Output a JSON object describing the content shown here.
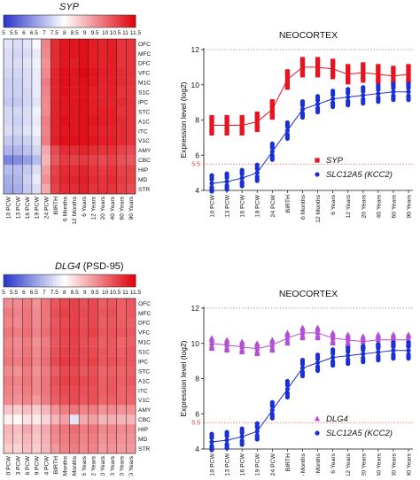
{
  "row_labels": [
    "OFC",
    "MFC",
    "DFC",
    "VFC",
    "M1C",
    "S1C",
    "IPC",
    "STC",
    "A1C",
    "ITC",
    "V1C",
    "AMY",
    "CBC",
    "HIP",
    "MD",
    "STR"
  ],
  "time_labels": [
    "10 PCW",
    "13 PCW",
    "16 PCW",
    "19 PCW",
    "24 PCW",
    "BIRTH",
    "6 Months",
    "12 Months",
    "6 Years",
    "12 Years",
    "20 Years",
    "40 Years",
    "60 Years",
    "90 Years"
  ],
  "scale_ticks": [
    "5",
    "5.5",
    "6",
    "6.5",
    "7",
    "7.5",
    "8",
    "8.5",
    "9",
    "9.5",
    "10",
    "10.5",
    "11",
    "11.5"
  ],
  "colors": {
    "low": "#2535c8",
    "mid": "#ffffff",
    "high": "#e0000a",
    "red_series": "#e8131e",
    "blue_series": "#1a2fd6",
    "purple_series": "#b24fd2"
  },
  "chart_data": [
    {
      "type": "heatmap",
      "title": "SYP",
      "title_italic": true,
      "title_suffix": "",
      "color_scale": [
        5,
        11.5
      ],
      "rows": [
        "OFC",
        "MFC",
        "DFC",
        "VFC",
        "M1C",
        "S1C",
        "IPC",
        "STC",
        "A1C",
        "ITC",
        "V1C",
        "AMY",
        "CBC",
        "HIP",
        "MD",
        "STR"
      ],
      "columns": [
        "10 PCW",
        "13 PCW",
        "16 PCW",
        "19 PCW",
        "24 PCW",
        "BIRTH",
        "6 Months",
        "12 Months",
        "6 Years",
        "12 Years",
        "20 Years",
        "40 Years",
        "60 Years",
        "90 Years"
      ],
      "values": [
        [
          7.6,
          7.5,
          7.6,
          7.9,
          9.7,
          10.9,
          11.2,
          11.2,
          11.3,
          11.1,
          11.0,
          11.1,
          10.8,
          10.8
        ],
        [
          7.5,
          7.4,
          7.5,
          7.7,
          9.6,
          10.9,
          11.2,
          11.2,
          11.3,
          11.1,
          11.0,
          11.1,
          10.8,
          10.8
        ],
        [
          7.5,
          7.5,
          7.6,
          7.8,
          9.5,
          10.9,
          11.2,
          11.1,
          11.3,
          11.1,
          11.0,
          11.1,
          10.8,
          10.8
        ],
        [
          7.4,
          7.4,
          7.5,
          7.7,
          9.6,
          11.0,
          11.3,
          11.2,
          11.4,
          11.2,
          11.1,
          11.1,
          10.9,
          10.8
        ],
        [
          7.3,
          7.3,
          7.5,
          7.7,
          9.8,
          11.0,
          11.3,
          11.2,
          11.3,
          11.2,
          11.0,
          11.1,
          10.9,
          10.8
        ],
        [
          7.3,
          7.3,
          7.4,
          7.7,
          9.7,
          11.0,
          11.3,
          11.2,
          11.3,
          11.1,
          11.0,
          11.1,
          10.8,
          10.8
        ],
        [
          7.2,
          7.2,
          7.4,
          7.6,
          9.6,
          11.0,
          11.2,
          11.2,
          11.3,
          11.1,
          11.0,
          11.0,
          10.9,
          10.8
        ],
        [
          7.4,
          7.4,
          7.5,
          7.8,
          9.6,
          11.0,
          11.2,
          11.2,
          11.3,
          11.1,
          11.1,
          11.1,
          10.8,
          10.8
        ],
        [
          7.4,
          7.3,
          7.5,
          7.7,
          9.8,
          11.0,
          11.3,
          11.2,
          11.3,
          11.2,
          11.1,
          11.1,
          10.9,
          10.8
        ],
        [
          7.5,
          7.4,
          7.6,
          7.8,
          9.7,
          11.0,
          11.2,
          11.2,
          11.3,
          11.1,
          11.0,
          11.0,
          10.9,
          10.8
        ],
        [
          7.2,
          7.2,
          7.3,
          7.6,
          9.8,
          11.1,
          11.3,
          11.3,
          11.3,
          11.2,
          11.1,
          11.1,
          10.9,
          10.8
        ],
        [
          6.9,
          6.9,
          7.1,
          7.4,
          9.2,
          10.5,
          10.9,
          10.9,
          11.0,
          10.9,
          10.8,
          10.8,
          10.6,
          10.5
        ],
        [
          6.2,
          6.3,
          6.6,
          7.0,
          9.0,
          10.3,
          10.7,
          10.6,
          10.7,
          10.6,
          10.5,
          10.6,
          10.4,
          10.3
        ],
        [
          7.0,
          7.0,
          7.2,
          7.5,
          9.3,
          10.6,
          10.9,
          10.9,
          11.0,
          10.8,
          10.7,
          10.8,
          10.6,
          10.6
        ],
        [
          6.8,
          6.9,
          7.3,
          7.7,
          9.5,
          10.7,
          11.0,
          11.0,
          11.1,
          10.9,
          10.8,
          10.9,
          10.7,
          10.6
        ],
        [
          6.7,
          6.8,
          7.2,
          7.5,
          9.2,
          10.6,
          10.9,
          10.9,
          11.0,
          10.8,
          10.8,
          10.8,
          10.6,
          10.5
        ]
      ]
    },
    {
      "type": "scatter",
      "title": "NEOCORTEX",
      "ylabel": "Expression level (log2)",
      "ylim": [
        4,
        12
      ],
      "yticks": [
        4,
        6,
        8,
        10,
        12
      ],
      "reference_lines": [
        12,
        5.5
      ],
      "reference_label": "5.5",
      "categories": [
        "10 PCW",
        "13 PCW",
        "16 PCW",
        "19 PCW",
        "24 PCW",
        "BIRTH",
        "6 Months",
        "12 Months",
        "6 Years",
        "12 Years",
        "20 Years",
        "40 Years",
        "60 Years",
        "90 Years"
      ],
      "x_positions": [
        0,
        1,
        2,
        3,
        4,
        5,
        6,
        7,
        8,
        9,
        10,
        11,
        12,
        13
      ],
      "series": [
        {
          "name": "SYP",
          "name_italic": true,
          "marker": "square",
          "values": [
            7.7,
            7.7,
            7.7,
            7.9,
            8.6,
            10.3,
            11.0,
            11.0,
            10.9,
            10.6,
            10.7,
            10.6,
            10.5,
            10.6
          ],
          "spread": 0.45
        },
        {
          "name": "SLC12A5 (KCC2)",
          "name_italic": true,
          "marker": "circle",
          "values": [
            4.4,
            4.5,
            4.7,
            5.0,
            6.2,
            7.4,
            8.6,
            8.9,
            9.2,
            9.3,
            9.4,
            9.5,
            9.6,
            9.6
          ],
          "spread": 0.45
        }
      ]
    },
    {
      "type": "heatmap",
      "title": "DLG4",
      "title_italic": true,
      "title_suffix": "(PSD-95)",
      "color_scale": [
        5,
        11.5
      ],
      "rows": [
        "OFC",
        "MFC",
        "DFC",
        "VFC",
        "M1C",
        "S1C",
        "IPC",
        "STC",
        "A1C",
        "ITC",
        "V1C",
        "AMY",
        "CBC",
        "HIP",
        "MD",
        "STR"
      ],
      "columns": [
        "10 PCW",
        "13 PCW",
        "16 PCW",
        "19 PCW",
        "24 PCW",
        "BIRTH",
        "6 Months",
        "12 Months",
        "6 Years",
        "12 Years",
        "20 Years",
        "40 Years",
        "60 Years",
        "90 Years"
      ],
      "values": [
        [
          9.6,
          9.6,
          9.8,
          9.5,
          9.9,
          10.3,
          10.5,
          10.6,
          10.4,
          10.5,
          10.2,
          10.3,
          10.2,
          10.3
        ],
        [
          9.8,
          9.7,
          9.9,
          9.6,
          9.9,
          10.4,
          10.6,
          10.6,
          10.5,
          10.5,
          10.3,
          10.4,
          10.2,
          10.3
        ],
        [
          9.7,
          9.6,
          9.9,
          9.6,
          9.9,
          10.3,
          10.5,
          10.6,
          10.4,
          10.5,
          10.2,
          10.3,
          10.2,
          10.2
        ],
        [
          9.9,
          9.8,
          10.0,
          9.7,
          10.0,
          10.4,
          10.6,
          10.7,
          10.5,
          10.6,
          10.3,
          10.4,
          10.3,
          10.3
        ],
        [
          9.7,
          9.6,
          9.8,
          9.5,
          9.8,
          10.3,
          10.5,
          10.6,
          10.4,
          10.4,
          10.2,
          10.3,
          10.1,
          10.2
        ],
        [
          9.8,
          9.7,
          9.9,
          9.6,
          9.9,
          10.4,
          10.6,
          10.6,
          10.5,
          10.5,
          10.3,
          10.3,
          10.2,
          10.3
        ],
        [
          9.9,
          9.8,
          10.0,
          9.7,
          10.0,
          10.5,
          10.7,
          10.7,
          10.5,
          10.6,
          10.3,
          10.4,
          10.3,
          10.3
        ],
        [
          9.6,
          9.5,
          9.8,
          9.5,
          9.8,
          10.2,
          10.5,
          10.5,
          10.3,
          10.4,
          10.1,
          10.2,
          10.1,
          10.2
        ],
        [
          9.8,
          9.7,
          9.9,
          9.6,
          9.9,
          10.4,
          10.6,
          10.6,
          10.5,
          10.5,
          10.2,
          10.3,
          10.2,
          10.3
        ],
        [
          9.7,
          9.6,
          9.8,
          9.6,
          9.9,
          10.3,
          10.5,
          10.5,
          10.4,
          10.4,
          10.2,
          10.3,
          10.1,
          10.2
        ],
        [
          9.6,
          9.5,
          9.7,
          9.4,
          9.8,
          10.2,
          10.4,
          10.5,
          10.3,
          10.4,
          10.1,
          10.2,
          10.1,
          10.1
        ],
        [
          8.8,
          8.7,
          8.9,
          8.7,
          9.0,
          9.5,
          9.8,
          9.9,
          9.7,
          9.8,
          9.5,
          9.6,
          9.5,
          9.5
        ],
        [
          8.2,
          8.1,
          8.4,
          8.3,
          8.6,
          9.0,
          9.3,
          7.6,
          9.2,
          9.3,
          9.0,
          9.1,
          9.0,
          9.0
        ],
        [
          9.0,
          8.9,
          9.2,
          8.9,
          9.2,
          9.7,
          9.9,
          10.0,
          9.8,
          9.9,
          9.6,
          9.7,
          9.6,
          9.6
        ],
        [
          8.9,
          8.8,
          9.0,
          8.8,
          9.1,
          9.6,
          9.8,
          9.9,
          9.7,
          9.8,
          9.5,
          9.6,
          9.5,
          9.5
        ],
        [
          8.7,
          8.6,
          8.9,
          8.7,
          9.0,
          9.4,
          9.7,
          9.8,
          9.6,
          9.7,
          9.4,
          9.5,
          9.4,
          9.4
        ]
      ]
    },
    {
      "type": "scatter",
      "title": "NEOCORTEX",
      "ylabel": "Expression level (log2)",
      "ylim": [
        4,
        12
      ],
      "yticks": [
        4,
        6,
        8,
        10,
        12
      ],
      "reference_lines": [
        12,
        5.5
      ],
      "reference_label": "5.5",
      "categories": [
        "10 PCW",
        "13 PCW",
        "16 PCW",
        "19 PCW",
        "24 PCW",
        "BIRTH",
        "6 Months",
        "12 Months",
        "6 Years",
        "12 Years",
        "20 Years",
        "40 Years",
        "60 Years",
        "90 Years"
      ],
      "x_positions": [
        0,
        1,
        2,
        3,
        4,
        5,
        6,
        7,
        8,
        9,
        10,
        11,
        12,
        13
      ],
      "series": [
        {
          "name": "DLG4",
          "name_italic": true,
          "marker": "triangle",
          "values": [
            10.0,
            9.9,
            9.8,
            9.7,
            9.9,
            10.3,
            10.6,
            10.6,
            10.3,
            10.2,
            10.1,
            10.2,
            10.2,
            10.2
          ],
          "spread": 0.3
        },
        {
          "name": "SLC12A5 (KCC2)",
          "name_italic": true,
          "marker": "circle",
          "values": [
            4.4,
            4.5,
            4.7,
            5.0,
            6.2,
            7.4,
            8.6,
            8.9,
            9.2,
            9.3,
            9.4,
            9.5,
            9.6,
            9.6
          ],
          "spread": 0.45
        }
      ]
    }
  ]
}
